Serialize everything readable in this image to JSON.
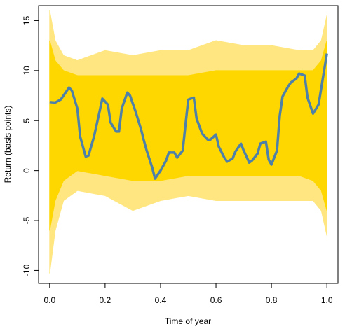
{
  "chart_data": {
    "type": "line",
    "xlabel": "Time of year",
    "ylabel": "Return (basis points)",
    "xlim": [
      -0.04,
      1.04
    ],
    "ylim": [
      -11.3,
      16.5
    ],
    "xticks": [
      {
        "value": 0,
        "label": "0.0"
      },
      0.2,
      0.4,
      0.6,
      0.8,
      {
        "value": 1,
        "label": "1.0"
      }
    ],
    "yticks": [
      -10,
      -5,
      0,
      5,
      10,
      15
    ],
    "bands": [
      {
        "color": "#ffe680",
        "x": [
          0,
          0.02,
          0.05,
          0.1,
          0.2,
          0.3,
          0.4,
          0.5,
          0.6,
          0.7,
          0.8,
          0.9,
          0.95,
          0.98,
          1
        ],
        "upper": [
          16,
          13,
          11.5,
          11,
          12,
          11.5,
          12,
          12,
          13,
          12.5,
          12.5,
          12,
          12,
          13,
          15.5
        ],
        "lower": [
          -10.3,
          -6,
          -3,
          -2,
          -2.5,
          -4,
          -3,
          -2.5,
          -3,
          -3,
          -3,
          -3,
          -3,
          -4,
          -6.5
        ]
      },
      {
        "color": "#ffd700",
        "x": [
          0,
          0.02,
          0.05,
          0.1,
          0.2,
          0.3,
          0.4,
          0.5,
          0.6,
          0.7,
          0.8,
          0.9,
          0.95,
          0.98,
          1
        ],
        "upper": [
          13,
          11,
          10,
          9.5,
          9.5,
          9.5,
          9.5,
          9.5,
          10,
          10,
          10,
          10,
          10,
          11,
          13
        ],
        "lower": [
          -6,
          -3,
          -1,
          0,
          -0.5,
          -1,
          -1,
          -0.5,
          -0.5,
          -0.5,
          -0.5,
          -0.5,
          -1,
          -2,
          -4
        ]
      }
    ],
    "series": [
      {
        "color": "#4f81a8",
        "x": [
          0,
          0.02,
          0.04,
          0.07,
          0.08,
          0.1,
          0.11,
          0.13,
          0.14,
          0.16,
          0.18,
          0.19,
          0.21,
          0.22,
          0.24,
          0.25,
          0.26,
          0.28,
          0.29,
          0.31,
          0.33,
          0.34,
          0.35,
          0.37,
          0.38,
          0.4,
          0.42,
          0.43,
          0.45,
          0.46,
          0.48,
          0.49,
          0.5,
          0.52,
          0.53,
          0.55,
          0.57,
          0.58,
          0.6,
          0.61,
          0.63,
          0.64,
          0.66,
          0.67,
          0.69,
          0.7,
          0.72,
          0.73,
          0.75,
          0.76,
          0.78,
          0.79,
          0.8,
          0.82,
          0.83,
          0.84,
          0.86,
          0.87,
          0.89,
          0.9,
          0.92,
          0.93,
          0.95,
          0.97,
          0.98,
          1
        ],
        "values": [
          6.85,
          6.8,
          7.1,
          8.3,
          8.0,
          6.2,
          3.4,
          1.4,
          1.5,
          3.4,
          5.9,
          7.2,
          6.6,
          4.8,
          3.9,
          3.9,
          6.2,
          7.8,
          7.5,
          5.9,
          4.1,
          3.0,
          2.0,
          0.3,
          -0.8,
          0,
          1.0,
          1.8,
          1.8,
          1.3,
          2.0,
          4.6,
          7.1,
          7.3,
          5.2,
          3.7,
          3.1,
          3.1,
          3.6,
          2.4,
          1.3,
          0.9,
          1.2,
          1.9,
          2.7,
          2.0,
          0.8,
          1.0,
          1.7,
          2.7,
          2.9,
          1.1,
          0.6,
          2.0,
          5.5,
          7.4,
          8.4,
          8.8,
          9.2,
          9.7,
          9.5,
          7.3,
          5.7,
          6.6,
          8.3,
          11.7
        ]
      }
    ]
  }
}
